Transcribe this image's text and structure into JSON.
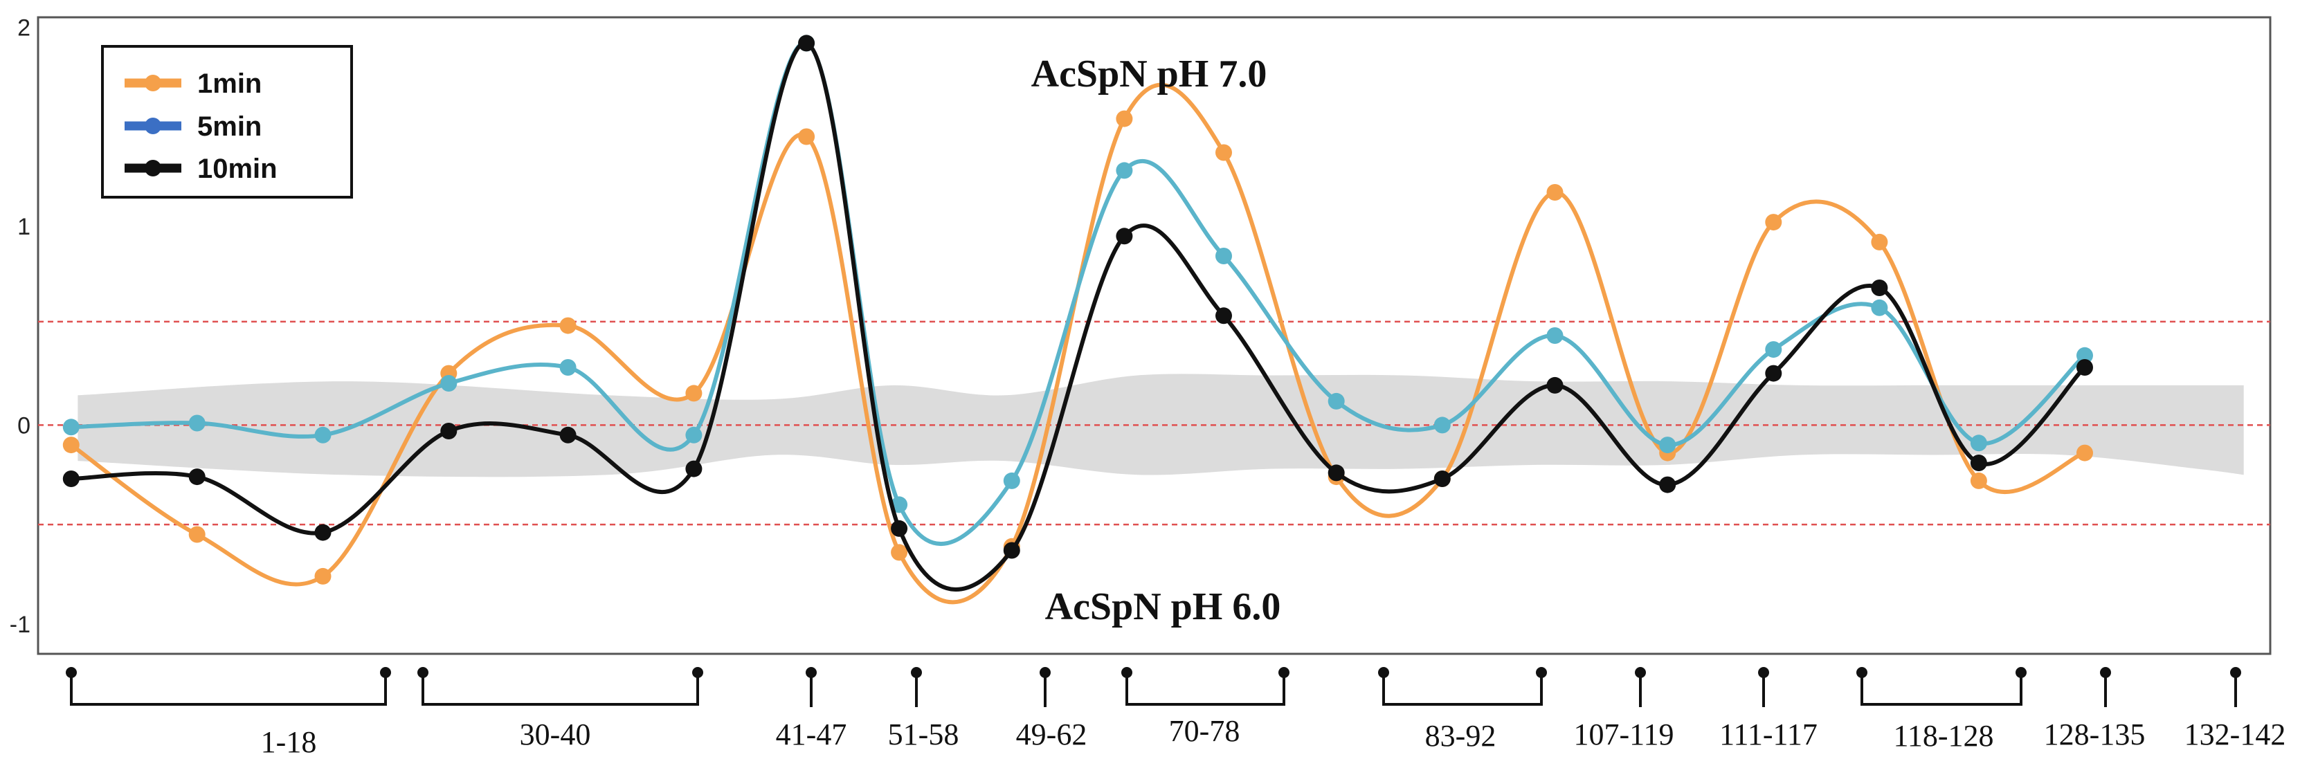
{
  "chart_data": {
    "type": "line",
    "title": "",
    "xlabel": "",
    "ylabel": "",
    "ylim": [
      -1.15,
      2.05
    ],
    "yticks": [
      2,
      1,
      0,
      -1
    ],
    "x_positions": [
      -0.1,
      0.87,
      2.72,
      4.67,
      6.53,
      8.36,
      10.2,
      11.55,
      12.82,
      14.37,
      15.96,
      17.54,
      19.08,
      20.68,
      22.23,
      23.77,
      25.29,
      26.65,
      28.11,
      29.62,
      31.18,
      32.62
    ],
    "xlim": [
      -0.6,
      33.1
    ],
    "series": [
      {
        "name": "1min",
        "color": "#f5a04a",
        "values": [
          -0.1,
          -0.55,
          -0.76,
          0.26,
          0.5,
          0.16,
          1.45,
          -0.64,
          -0.61,
          1.54,
          1.37,
          -0.26,
          -0.27,
          1.17,
          -0.14,
          1.02,
          0.92,
          -0.28,
          -0.14
        ]
      },
      {
        "name": "5min",
        "color": "#5ab4ca",
        "values": [
          -0.01,
          0.01,
          -0.05,
          0.21,
          0.29,
          -0.05,
          1.92,
          -0.4,
          -0.28,
          1.28,
          0.85,
          0.12,
          0.0,
          0.45,
          -0.1,
          0.38,
          0.59,
          -0.09,
          0.35
        ]
      },
      {
        "name": "10min",
        "color": "#111111",
        "values": [
          -0.27,
          -0.26,
          -0.54,
          -0.03,
          -0.05,
          -0.22,
          1.92,
          -0.52,
          -0.63,
          0.95,
          0.55,
          -0.24,
          -0.27,
          0.2,
          -0.3,
          0.26,
          0.69,
          -0.19,
          0.29
        ]
      }
    ],
    "series_x": [
      -0.1,
      1.8,
      3.7,
      5.6,
      7.4,
      9.3,
      11.0,
      12.4,
      14.1,
      15.8,
      17.3,
      19.0,
      20.6,
      22.3,
      24.0,
      25.6,
      27.2,
      28.7,
      30.3
    ],
    "reference_lines": [
      0.52,
      0.0,
      -0.5
    ],
    "annotations": {
      "top": "AcSpN pH 7.0",
      "bottom": "AcSpN pH 6.0"
    },
    "segments": [
      {
        "label": "1-18",
        "type": "range"
      },
      {
        "label": "30-40",
        "type": "range"
      },
      {
        "label": "41-47",
        "type": "point"
      },
      {
        "label": "51-58",
        "type": "point"
      },
      {
        "label": "49-62",
        "type": "point"
      },
      {
        "label": "70-78",
        "type": "range"
      },
      {
        "label": "83-92",
        "type": "range"
      },
      {
        "label": "107-119",
        "type": "point"
      },
      {
        "label": "111-117",
        "type": "point"
      },
      {
        "label": "118-128",
        "type": "range"
      },
      {
        "label": "128-135",
        "type": "point"
      },
      {
        "label": "132-142",
        "type": "point"
      }
    ],
    "legend": {
      "placement": "top-left",
      "entries": [
        "1min",
        "5min",
        "10min"
      ]
    }
  },
  "colors": {
    "band": "#dcdcdc",
    "refline": "#e05050",
    "legend_5min": "#3b6fc4"
  }
}
